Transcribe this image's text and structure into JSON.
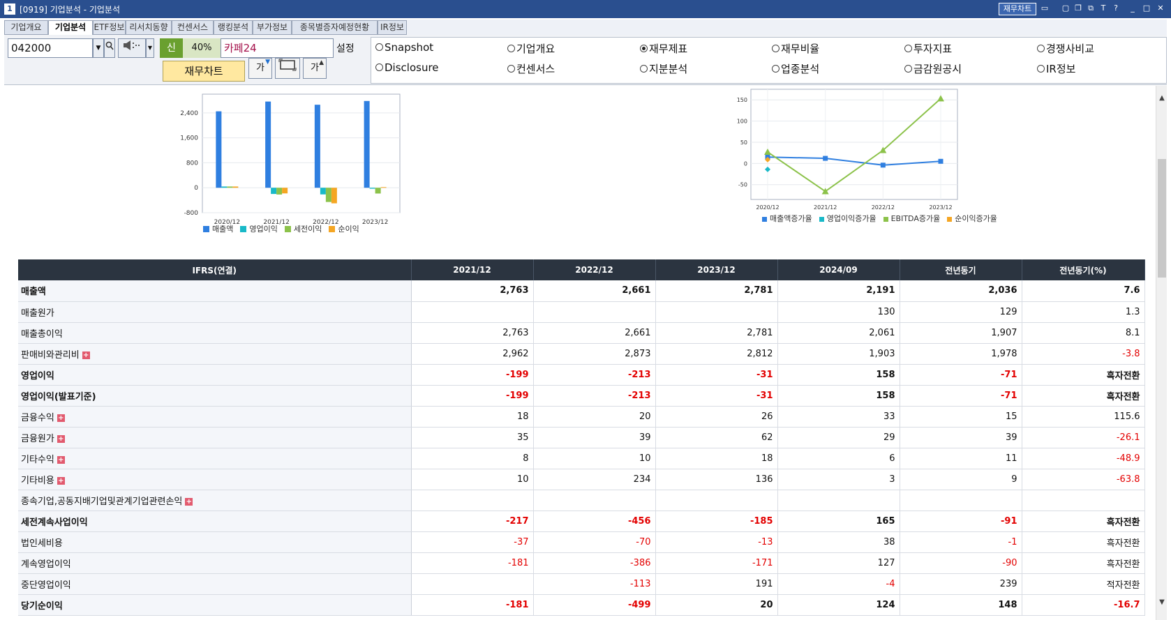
{
  "window": {
    "number": "1",
    "title": "[0919] 기업분석 - 기업분석",
    "chart_button": "재무차트"
  },
  "window_icons": [
    "window-icon",
    "layout-icon",
    "tile-icon",
    "link-icon",
    "font-icon",
    "help-icon",
    "minimize-icon",
    "maximize-icon",
    "close-icon"
  ],
  "tabs": [
    "기업개요",
    "기업분석",
    "ETF정보",
    "리서치동향",
    "컨센서스",
    "랭킹분석",
    "부가정보",
    "종목별증자예정현황",
    "IR정보"
  ],
  "toolbar": {
    "code": "042000",
    "sin": "신",
    "percent": "40%",
    "company": "카페24",
    "setting": "설정",
    "fin_chart": "재무차트",
    "font_btn": "가"
  },
  "radios": [
    {
      "label": "Snapshot",
      "checked": false
    },
    {
      "label": "기업개요",
      "checked": false
    },
    {
      "label": "재무제표",
      "checked": true
    },
    {
      "label": "재무비율",
      "checked": false
    },
    {
      "label": "투자지표",
      "checked": false
    },
    {
      "label": "경쟁사비교",
      "checked": false
    },
    {
      "label": "Disclosure",
      "checked": false
    },
    {
      "label": "컨센서스",
      "checked": false
    },
    {
      "label": "지분분석",
      "checked": false
    },
    {
      "label": "업종분석",
      "checked": false
    },
    {
      "label": "금감원공시",
      "checked": false
    },
    {
      "label": "IR정보",
      "checked": false
    }
  ],
  "chart_data": [
    {
      "type": "bar",
      "categories": [
        "2020/12",
        "2021/12",
        "2022/12",
        "2023/12"
      ],
      "ylim": [
        -800,
        3000
      ],
      "yticks": [
        "2,400",
        "1,600",
        "800",
        "0",
        "-800"
      ],
      "series": [
        {
          "name": "매출액",
          "color": "#2f7fe0",
          "values": [
            2450,
            2763,
            2661,
            2781
          ]
        },
        {
          "name": "영업이익",
          "color": "#19b9c8",
          "values": [
            40,
            -199,
            -213,
            -31
          ]
        },
        {
          "name": "세전이익",
          "color": "#8cc24a",
          "values": [
            40,
            -217,
            -456,
            -185
          ]
        },
        {
          "name": "순이익",
          "color": "#f5a623",
          "values": [
            40,
            -181,
            -499,
            20
          ]
        }
      ]
    },
    {
      "type": "line",
      "categories": [
        "2020/12",
        "2021/12",
        "2022/12",
        "2023/12"
      ],
      "ylim": [
        -85,
        175
      ],
      "yticks": [
        "150",
        "100",
        "50",
        "0",
        "-50"
      ],
      "series": [
        {
          "name": "매출액증가율",
          "color": "#2f7fe0",
          "values": [
            15,
            12,
            -4,
            5
          ]
        },
        {
          "name": "영업이익증가율",
          "color": "#19b9c8",
          "values": [
            -14,
            null,
            null,
            null
          ]
        },
        {
          "name": "EBITDA증가율",
          "color": "#8cc24a",
          "values": [
            27,
            -66,
            31,
            153
          ]
        },
        {
          "name": "순이익증가율",
          "color": "#f5a623",
          "values": [
            9,
            null,
            null,
            null
          ]
        }
      ]
    }
  ],
  "table": {
    "headers": [
      "IFRS(연결)",
      "2021/12",
      "2022/12",
      "2023/12",
      "2024/09",
      "전년동기",
      "전년동기(%)"
    ],
    "rows": [
      {
        "label": "매출액",
        "bold": true,
        "plus": false,
        "values": [
          "2,763",
          "2,661",
          "2,781",
          "2,191",
          "2,036",
          "7.6"
        ]
      },
      {
        "label": "매출원가",
        "bold": false,
        "plus": false,
        "values": [
          "",
          "",
          "",
          "130",
          "129",
          "1.3"
        ]
      },
      {
        "label": "매출총이익",
        "bold": false,
        "plus": false,
        "values": [
          "2,763",
          "2,661",
          "2,781",
          "2,061",
          "1,907",
          "8.1"
        ]
      },
      {
        "label": "판매비와관리비",
        "bold": false,
        "plus": true,
        "values": [
          "2,962",
          "2,873",
          "2,812",
          "1,903",
          "1,978",
          "-3.8"
        ]
      },
      {
        "label": "영업이익",
        "bold": true,
        "plus": false,
        "values": [
          "-199",
          "-213",
          "-31",
          "158",
          "-71",
          "흑자전환"
        ]
      },
      {
        "label": "영업이익(발표기준)",
        "bold": true,
        "plus": false,
        "values": [
          "-199",
          "-213",
          "-31",
          "158",
          "-71",
          "흑자전환"
        ]
      },
      {
        "label": "금융수익",
        "bold": false,
        "plus": true,
        "values": [
          "18",
          "20",
          "26",
          "33",
          "15",
          "115.6"
        ]
      },
      {
        "label": "금융원가",
        "bold": false,
        "plus": true,
        "values": [
          "35",
          "39",
          "62",
          "29",
          "39",
          "-26.1"
        ]
      },
      {
        "label": "기타수익",
        "bold": false,
        "plus": true,
        "values": [
          "8",
          "10",
          "18",
          "6",
          "11",
          "-48.9"
        ]
      },
      {
        "label": "기타비용",
        "bold": false,
        "plus": true,
        "values": [
          "10",
          "234",
          "136",
          "3",
          "9",
          "-63.8"
        ]
      },
      {
        "label": "종속기업,공동지배기업및관계기업관련손익",
        "bold": false,
        "plus": true,
        "values": [
          "",
          "",
          "",
          "",
          "",
          ""
        ]
      },
      {
        "label": "세전계속사업이익",
        "bold": true,
        "plus": false,
        "values": [
          "-217",
          "-456",
          "-185",
          "165",
          "-91",
          "흑자전환"
        ]
      },
      {
        "label": "법인세비용",
        "bold": false,
        "plus": false,
        "values": [
          "-37",
          "-70",
          "-13",
          "38",
          "-1",
          "흑자전환"
        ]
      },
      {
        "label": "계속영업이익",
        "bold": false,
        "plus": false,
        "values": [
          "-181",
          "-386",
          "-171",
          "127",
          "-90",
          "흑자전환"
        ]
      },
      {
        "label": "중단영업이익",
        "bold": false,
        "plus": false,
        "values": [
          "",
          "-113",
          "191",
          "-4",
          "239",
          "적자전환"
        ]
      },
      {
        "label": "당기순이익",
        "bold": true,
        "plus": false,
        "values": [
          "-181",
          "-499",
          "20",
          "124",
          "148",
          "-16.7"
        ]
      }
    ]
  }
}
